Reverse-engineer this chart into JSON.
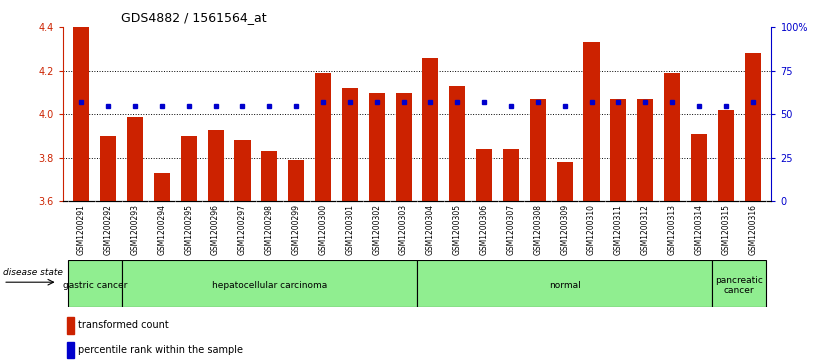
{
  "title": "GDS4882 / 1561564_at",
  "samples": [
    "GSM1200291",
    "GSM1200292",
    "GSM1200293",
    "GSM1200294",
    "GSM1200295",
    "GSM1200296",
    "GSM1200297",
    "GSM1200298",
    "GSM1200299",
    "GSM1200300",
    "GSM1200301",
    "GSM1200302",
    "GSM1200303",
    "GSM1200304",
    "GSM1200305",
    "GSM1200306",
    "GSM1200307",
    "GSM1200308",
    "GSM1200309",
    "GSM1200310",
    "GSM1200311",
    "GSM1200312",
    "GSM1200313",
    "GSM1200314",
    "GSM1200315",
    "GSM1200316"
  ],
  "transformed_count": [
    4.4,
    3.9,
    3.99,
    3.73,
    3.9,
    3.93,
    3.88,
    3.83,
    3.79,
    4.19,
    4.12,
    4.1,
    4.1,
    4.26,
    4.13,
    3.84,
    3.84,
    4.07,
    3.78,
    4.33,
    4.07,
    4.07,
    4.19,
    3.91,
    4.02,
    4.28
  ],
  "percentile_rank": [
    57,
    55,
    55,
    55,
    55,
    55,
    55,
    55,
    55,
    57,
    57,
    57,
    57,
    57,
    57,
    57,
    55,
    57,
    55,
    57,
    57,
    57,
    57,
    55,
    55,
    57
  ],
  "bar_color": "#CC2200",
  "dot_color": "#0000CC",
  "ylim_left": [
    3.6,
    4.4
  ],
  "ylim_right": [
    0,
    100
  ],
  "yticks_left": [
    3.6,
    3.8,
    4.0,
    4.2,
    4.4
  ],
  "yticks_right": [
    0,
    25,
    50,
    75,
    100
  ],
  "ytick_labels_right": [
    "0",
    "25",
    "50",
    "75",
    "100%"
  ],
  "grid_values": [
    3.8,
    4.0,
    4.2
  ],
  "bar_width": 0.6,
  "group_bounds": [
    [
      0,
      2,
      "gastric cancer"
    ],
    [
      2,
      13,
      "hepatocellular carcinoma"
    ],
    [
      13,
      24,
      "normal"
    ],
    [
      24,
      26,
      "pancreatic\ncancer"
    ]
  ],
  "group_color": "#90EE90",
  "xtick_bg": "#C8C8C8",
  "legend_red_label": "transformed count",
  "legend_blue_label": "percentile rank within the sample",
  "disease_state_label": "disease state"
}
